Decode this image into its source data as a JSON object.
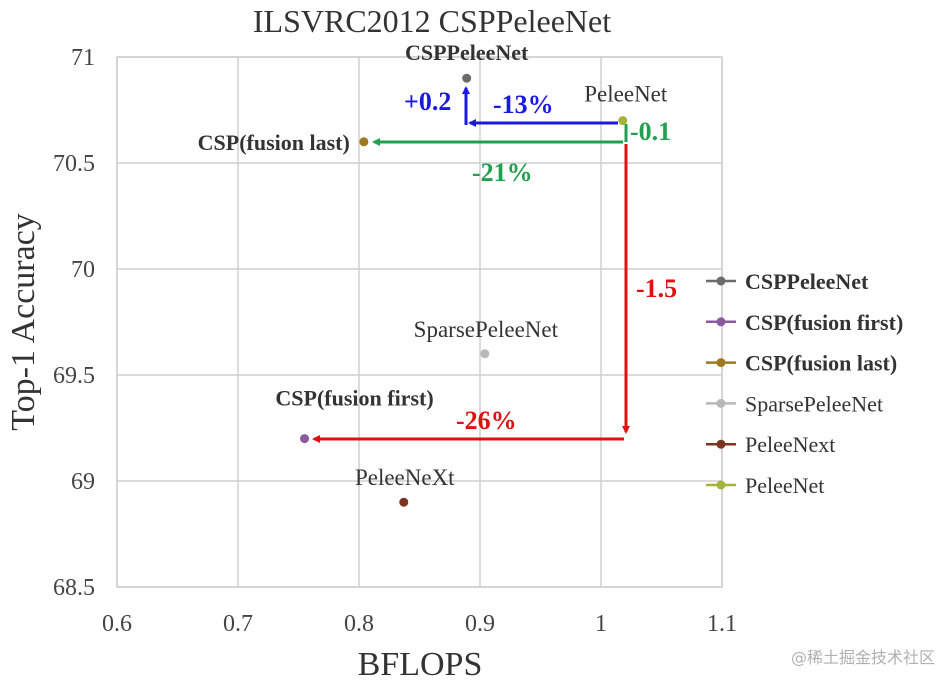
{
  "chart_data": {
    "type": "scatter",
    "title": "ILSVRC2012 CSPPeleeNet",
    "xlabel": "BFLOPS",
    "ylabel": "Top-1 Accuracy",
    "xlim": [
      0.6,
      1.1
    ],
    "ylim": [
      68.5,
      71
    ],
    "xticks": [
      "0.6",
      "0.7",
      "0.8",
      "0.9",
      "1",
      "1.1"
    ],
    "yticks": [
      "68.5",
      "69",
      "69.5",
      "70",
      "70.5",
      "71"
    ],
    "grid": true,
    "legend_position": "right",
    "series": [
      {
        "name": "CSPPeleeNet",
        "x": 0.889,
        "y": 70.9,
        "color": "#6b6b6b",
        "label": "CSPPeleeNet",
        "bold": true
      },
      {
        "name": "CSP(fusion first)",
        "x": 0.755,
        "y": 69.2,
        "color": "#8a5a9e",
        "label": "CSP(fusion first)",
        "bold": true
      },
      {
        "name": "CSP(fusion last)",
        "x": 0.804,
        "y": 70.6,
        "color": "#9c7a20",
        "label": "CSP(fusion last)",
        "bold": true
      },
      {
        "name": "SparsePeleeNet",
        "x": 0.904,
        "y": 69.6,
        "color": "#b8b8b8",
        "label": "SparsePeleeNet",
        "bold": false
      },
      {
        "name": "PeleeNext",
        "x": 0.837,
        "y": 68.9,
        "color": "#7a3520",
        "label": "PeleeNeXt",
        "bold": false
      },
      {
        "name": "PeleeNet",
        "x": 1.018,
        "y": 70.7,
        "color": "#a5b43a",
        "label": "PeleeNet",
        "bold": false
      }
    ],
    "annotations": [
      {
        "text": "+0.2",
        "color": "#1a1adf"
      },
      {
        "text": "-13%",
        "color": "#1a1adf"
      },
      {
        "text": "-0.1",
        "color": "#22a050"
      },
      {
        "text": "-21%",
        "color": "#22a050"
      },
      {
        "text": "-1.5",
        "color": "#e01010"
      },
      {
        "text": "-26%",
        "color": "#e01010"
      }
    ]
  },
  "watermark": "@稀土掘金技术社区"
}
